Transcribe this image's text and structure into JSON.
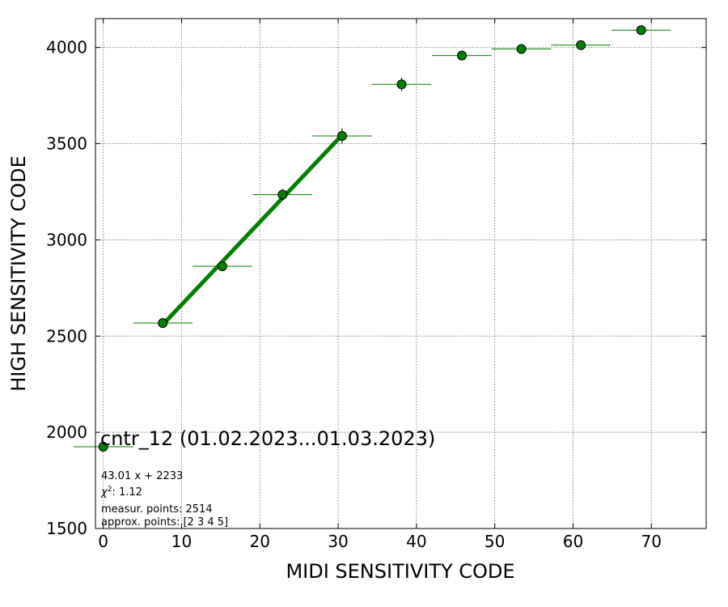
{
  "chart_data": {
    "type": "scatter",
    "title": "cntr_12 (01.02.2023...01.03.2023)",
    "xlabel": "MIDI SENSITIVITY CODE",
    "ylabel": "HIGH SENSITIVITY CODE",
    "xlim": [
      -1,
      77
    ],
    "ylim": [
      1500,
      4150
    ],
    "xticks": [
      0,
      10,
      20,
      30,
      40,
      50,
      60,
      70
    ],
    "yticks": [
      1500,
      2000,
      2500,
      3000,
      3500,
      4000
    ],
    "grid": true,
    "colors": {
      "points": "#008000",
      "edge": "#000000",
      "fit": "#008000",
      "grid": "#808080"
    },
    "points": [
      {
        "x": 0.0,
        "y": 1925,
        "xerr": 3.8,
        "yerr": 0
      },
      {
        "x": 7.6,
        "y": 2568,
        "xerr": 3.8,
        "yerr": 12
      },
      {
        "x": 15.2,
        "y": 2863,
        "xerr": 3.8,
        "yerr": 22
      },
      {
        "x": 22.9,
        "y": 3235,
        "xerr": 3.8,
        "yerr": 30
      },
      {
        "x": 30.5,
        "y": 3540,
        "xerr": 3.8,
        "yerr": 40
      },
      {
        "x": 38.1,
        "y": 3808,
        "xerr": 3.8,
        "yerr": 35
      },
      {
        "x": 45.8,
        "y": 3958,
        "xerr": 3.8,
        "yerr": 20
      },
      {
        "x": 53.4,
        "y": 3992,
        "xerr": 3.8,
        "yerr": 15
      },
      {
        "x": 61.0,
        "y": 4012,
        "xerr": 3.8,
        "yerr": 25
      },
      {
        "x": 68.7,
        "y": 4090,
        "xerr": 3.8,
        "yerr": 10
      }
    ],
    "fit": {
      "slope": 43.01,
      "intercept": 2233,
      "x_range": [
        7.6,
        30.5
      ]
    },
    "annotations": {
      "equation": "43.01 x + 2233",
      "chi2_value": "1.12",
      "measur_points": "measur. points: 2514",
      "approx_points": "approx. points: [2 3 4 5]"
    }
  }
}
